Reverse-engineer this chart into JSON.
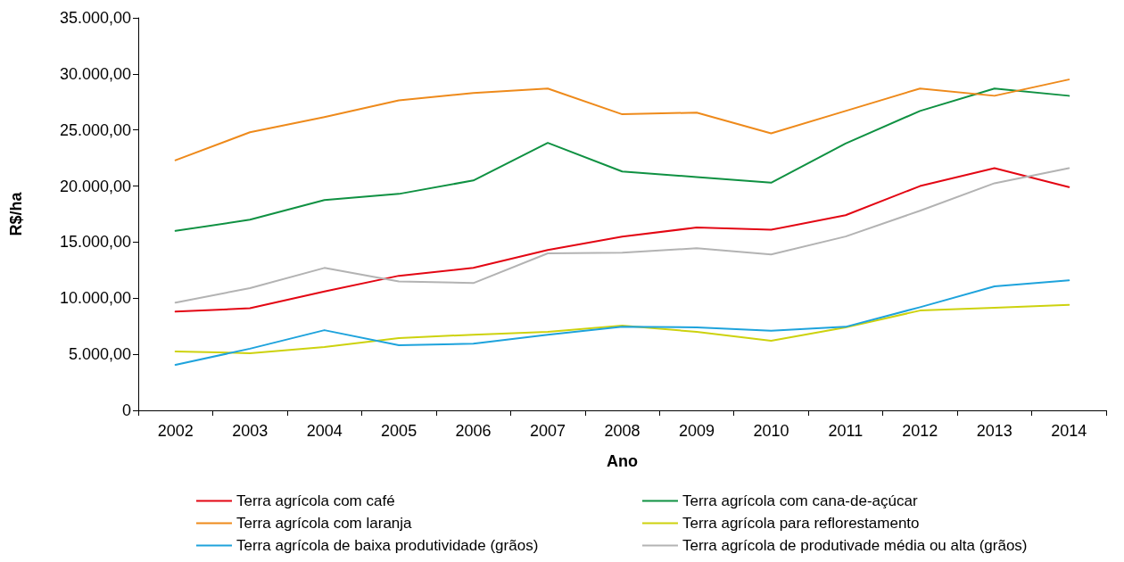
{
  "chart_data": {
    "type": "line",
    "xlabel": "Ano",
    "ylabel": "R$/ha",
    "categories": [
      "2002",
      "2003",
      "2004",
      "2005",
      "2006",
      "2007",
      "2008",
      "2009",
      "2010",
      "2011",
      "2012",
      "2013",
      "2014"
    ],
    "ylim": [
      0,
      35000
    ],
    "yticks": [
      {
        "value": 0,
        "label": "0"
      },
      {
        "value": 5000,
        "label": "5.000,00"
      },
      {
        "value": 10000,
        "label": "10.000,00"
      },
      {
        "value": 15000,
        "label": "15.000,00"
      },
      {
        "value": 20000,
        "label": "20.000,00"
      },
      {
        "value": 25000,
        "label": "25.000,00"
      },
      {
        "value": 30000,
        "label": "30.000,00"
      },
      {
        "value": 35000,
        "label": "35.000,00"
      }
    ],
    "grid": false,
    "legend": "bottom",
    "marker": "none",
    "line_style": "solid",
    "series": [
      {
        "name": "Terra agrícola com café",
        "color": "#e30613",
        "values": [
          8800,
          9100,
          10600,
          12000,
          12700,
          14300,
          15500,
          16300,
          16100,
          17400,
          20000,
          21600,
          19900
        ]
      },
      {
        "name": "Terra agrícola com cana-de-açúcar",
        "color": "#0f9142",
        "values": [
          16000,
          17000,
          18750,
          19300,
          20500,
          23850,
          21300,
          20800,
          20300,
          23800,
          26700,
          28700,
          28050
        ]
      },
      {
        "name": "Terra agrícola com laranja",
        "color": "#ee8a1b",
        "values": [
          22300,
          24800,
          26150,
          27650,
          28300,
          28700,
          26400,
          26550,
          24700,
          26700,
          28700,
          28050,
          29500
        ]
      },
      {
        "name": "Terra agrícola para reflorestamento",
        "color": "#cdd20e",
        "values": [
          5250,
          5100,
          5650,
          6450,
          6750,
          7000,
          7550,
          7000,
          6200,
          7400,
          8900,
          9150,
          9400
        ]
      },
      {
        "name": "Terra agrícola de baixa produtividade (grãos)",
        "color": "#1ea3dc",
        "values": [
          4050,
          5500,
          7150,
          5800,
          5950,
          6750,
          7450,
          7400,
          7100,
          7450,
          9200,
          11050,
          11600
        ]
      },
      {
        "name": "Terra agrícola de produtivade média ou alta (grãos)",
        "color": "#b3b3b3",
        "values": [
          9600,
          10900,
          12700,
          11500,
          11350,
          14000,
          14050,
          14450,
          13900,
          15500,
          17800,
          20250,
          21600
        ]
      }
    ]
  }
}
